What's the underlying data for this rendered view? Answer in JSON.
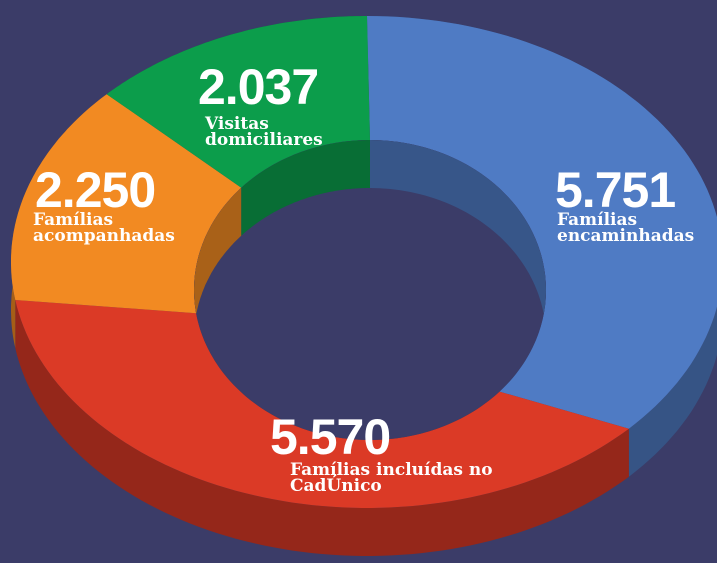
{
  "chart_data": {
    "type": "donut3d",
    "categories": [
      "Famílias encaminhadas",
      "Famílias incluídas no CadÚnico",
      "Famílias acompanhadas",
      "Visitas domiciliares"
    ],
    "values": [
      5751,
      5570,
      2250,
      2037
    ],
    "value_labels": [
      "5.751",
      "5.570",
      "2.250",
      "2.037"
    ],
    "colors": [
      "#4f7bc4",
      "#db3a26",
      "#f28a22",
      "#0c9d4b"
    ]
  }
}
